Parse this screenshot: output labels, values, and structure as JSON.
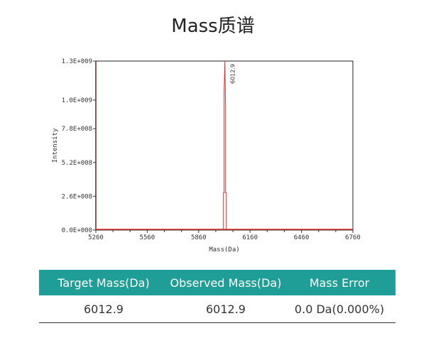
{
  "title": "Mass质谱",
  "chart_data": {
    "type": "line",
    "xlabel": "Mass(Da)",
    "ylabel": "Intensity",
    "xlim": [
      5260,
      6760
    ],
    "ylim": [
      0,
      1300000000
    ],
    "xticks": [
      5260,
      5560,
      5860,
      6160,
      6460,
      6760
    ],
    "xtick_labels": [
      "5260",
      "5560",
      "5860",
      "6160",
      "6460",
      "6760"
    ],
    "yticks": [
      0,
      260000000,
      520000000,
      780000000,
      1000000000,
      1300000000
    ],
    "ytick_labels": [
      "0.0E+000",
      "2.6E+008",
      "5.2E+008",
      "7.8E+008",
      "1.0E+009",
      "1.3E+009"
    ],
    "series_color": "#e03030",
    "peaks": [
      {
        "mass": 6012.9,
        "intensity": 1300000000,
        "label": "6012.9"
      }
    ],
    "grid": false
  },
  "table": {
    "header_color": "#1f9e98",
    "headers": [
      "Target Mass(Da)",
      "Observed Mass(Da)",
      "Mass Error"
    ],
    "rows": [
      [
        "6012.9",
        "6012.9",
        "0.0 Da(0.000%)"
      ]
    ]
  }
}
